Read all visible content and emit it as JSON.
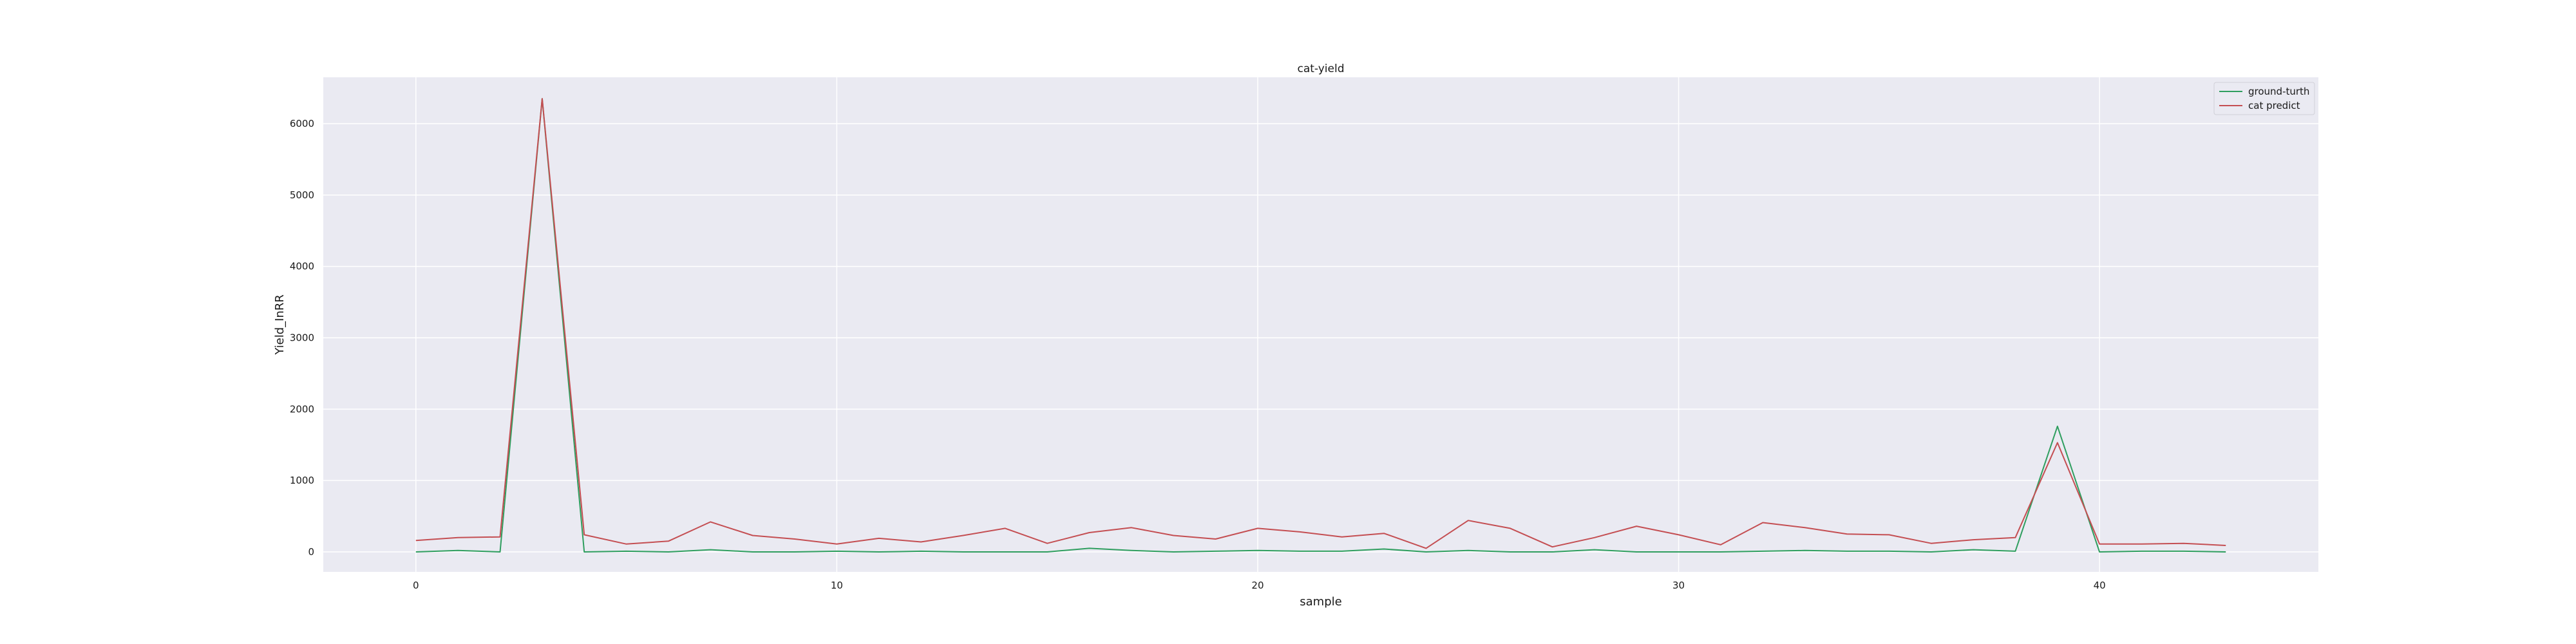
{
  "chart_data": {
    "type": "line",
    "title": "cat-yield",
    "xlabel": "sample",
    "ylabel": "Yield_InRR",
    "xlim": [
      -2.2,
      45.2
    ],
    "ylim": [
      -280,
      6650
    ],
    "xticks": [
      0,
      10,
      20,
      30,
      40
    ],
    "yticks": [
      0,
      1000,
      2000,
      3000,
      4000,
      5000,
      6000
    ],
    "grid": true,
    "legend_position": "top-right",
    "background_color": "#eaeaf2",
    "grid_color": "#ffffff",
    "series": [
      {
        "name": "ground-turth",
        "color": "#2f9e5f",
        "x": [
          0,
          1,
          2,
          3,
          4,
          5,
          6,
          7,
          8,
          9,
          10,
          11,
          12,
          13,
          14,
          15,
          16,
          17,
          18,
          19,
          20,
          21,
          22,
          23,
          24,
          25,
          26,
          27,
          28,
          29,
          30,
          31,
          32,
          33,
          34,
          35,
          36,
          37,
          38,
          39,
          40,
          41,
          42,
          43
        ],
        "values": [
          0,
          20,
          0,
          6350,
          0,
          10,
          0,
          30,
          0,
          0,
          10,
          0,
          10,
          0,
          0,
          0,
          50,
          20,
          0,
          10,
          20,
          10,
          10,
          40,
          0,
          20,
          0,
          0,
          30,
          0,
          0,
          0,
          10,
          20,
          10,
          10,
          0,
          30,
          10,
          1760,
          0,
          10,
          10,
          0
        ]
      },
      {
        "name": "cat predict",
        "color": "#c44e52",
        "x": [
          0,
          1,
          2,
          3,
          4,
          5,
          6,
          7,
          8,
          9,
          10,
          11,
          12,
          13,
          14,
          15,
          16,
          17,
          18,
          19,
          20,
          21,
          22,
          23,
          24,
          25,
          26,
          27,
          28,
          29,
          30,
          31,
          32,
          33,
          34,
          35,
          36,
          37,
          38,
          39,
          40,
          41,
          42,
          43
        ],
        "values": [
          160,
          200,
          210,
          6350,
          240,
          110,
          150,
          420,
          230,
          180,
          110,
          190,
          140,
          230,
          330,
          120,
          270,
          340,
          230,
          180,
          330,
          280,
          210,
          260,
          50,
          440,
          330,
          70,
          200,
          360,
          240,
          100,
          410,
          340,
          250,
          240,
          120,
          170,
          200,
          1530,
          110,
          110,
          120,
          90
        ]
      }
    ]
  }
}
